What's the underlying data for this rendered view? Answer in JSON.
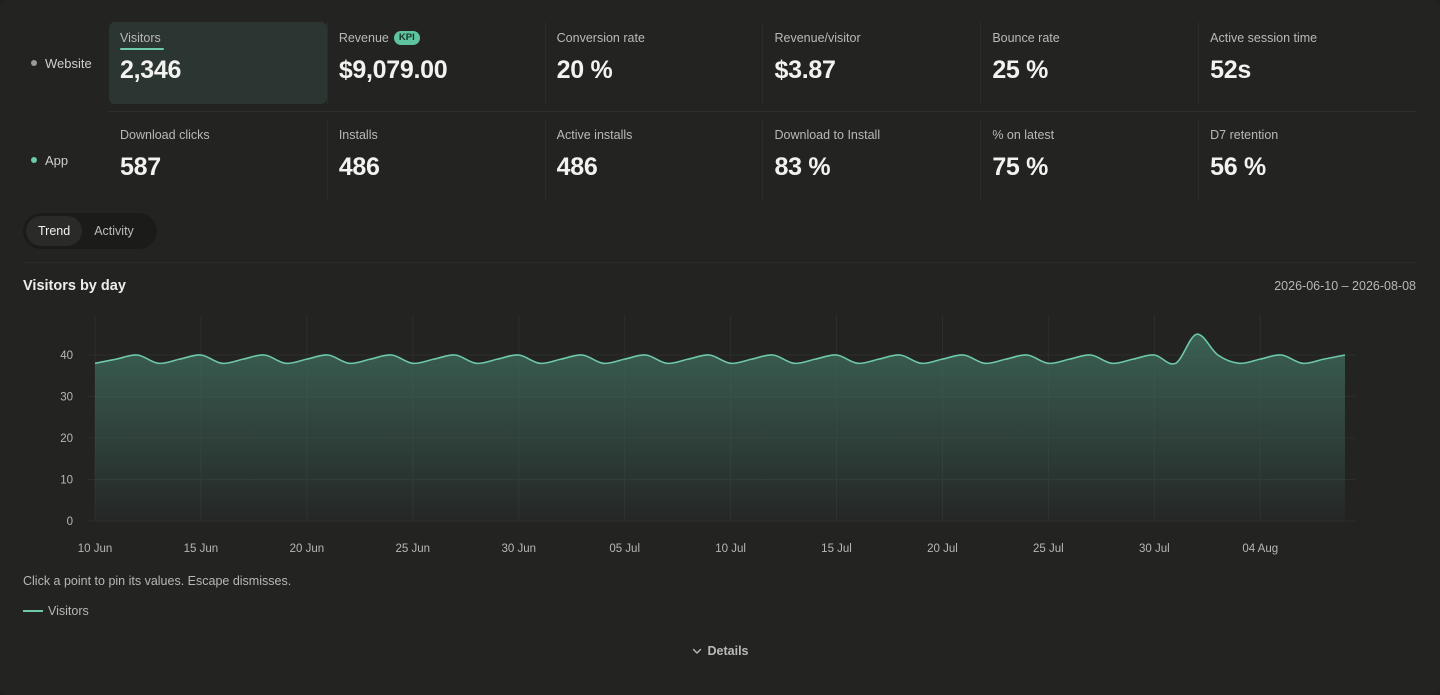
{
  "rows": [
    {
      "label": "Website",
      "dot_color": "#9b9b97",
      "cards": [
        {
          "label": "Visitors",
          "value": "2,346",
          "selected": true
        },
        {
          "label": "Revenue",
          "badge": "KPI",
          "value": "$9,079.00"
        },
        {
          "label": "Conversion rate",
          "value": "20 %"
        },
        {
          "label": "Revenue/visitor",
          "value": "$3.87"
        },
        {
          "label": "Bounce rate",
          "value": "25 %"
        },
        {
          "label": "Active session time",
          "value": "52s"
        }
      ]
    },
    {
      "label": "App",
      "dot_color": "#6ec9a8",
      "cards": [
        {
          "label": "Download clicks",
          "value": "587"
        },
        {
          "label": "Installs",
          "value": "486"
        },
        {
          "label": "Active installs",
          "value": "486"
        },
        {
          "label": "Download to Install",
          "value": "83 %"
        },
        {
          "label": "% on latest",
          "value": "75 %"
        },
        {
          "label": "D7 retention",
          "value": "56 %"
        }
      ]
    }
  ],
  "tabs": [
    {
      "label": "Trend",
      "active": true
    },
    {
      "label": "Activity",
      "active": false
    }
  ],
  "chart_title": "Visitors by day",
  "chart_range": "2026-06-10 – 2026-08-08",
  "hint": "Click a point to pin its values. Escape dismisses.",
  "legend_label": "Visitors",
  "details_label": "Details",
  "colors": {
    "accent": "#6ec9a8",
    "fill": "#3f6b5c",
    "grid": "#2e2e2d"
  },
  "chart_data": {
    "type": "area",
    "title": "Visitors by day",
    "xlabel": "",
    "ylabel": "",
    "ylim": [
      0,
      40
    ],
    "yticks": [
      0,
      10,
      20,
      30,
      40
    ],
    "xticks": [
      "10 Jun",
      "15 Jun",
      "20 Jun",
      "25 Jun",
      "30 Jun",
      "05 Jul",
      "10 Jul",
      "15 Jul",
      "20 Jul",
      "25 Jul",
      "30 Jul",
      "04 Aug"
    ],
    "grid": true,
    "x": [
      "2026-06-10",
      "2026-06-11",
      "2026-06-12",
      "2026-06-13",
      "2026-06-14",
      "2026-06-15",
      "2026-06-16",
      "2026-06-17",
      "2026-06-18",
      "2026-06-19",
      "2026-06-20",
      "2026-06-21",
      "2026-06-22",
      "2026-06-23",
      "2026-06-24",
      "2026-06-25",
      "2026-06-26",
      "2026-06-27",
      "2026-06-28",
      "2026-06-29",
      "2026-06-30",
      "2026-07-01",
      "2026-07-02",
      "2026-07-03",
      "2026-07-04",
      "2026-07-05",
      "2026-07-06",
      "2026-07-07",
      "2026-07-08",
      "2026-07-09",
      "2026-07-10",
      "2026-07-11",
      "2026-07-12",
      "2026-07-13",
      "2026-07-14",
      "2026-07-15",
      "2026-07-16",
      "2026-07-17",
      "2026-07-18",
      "2026-07-19",
      "2026-07-20",
      "2026-07-21",
      "2026-07-22",
      "2026-07-23",
      "2026-07-24",
      "2026-07-25",
      "2026-07-26",
      "2026-07-27",
      "2026-07-28",
      "2026-07-29",
      "2026-07-30",
      "2026-07-31",
      "2026-08-01",
      "2026-08-02",
      "2026-08-03",
      "2026-08-04",
      "2026-08-05",
      "2026-08-06",
      "2026-08-07",
      "2026-08-08"
    ],
    "series": [
      {
        "name": "Visitors",
        "values": [
          38,
          39,
          40,
          38,
          39,
          40,
          38,
          39,
          40,
          38,
          39,
          40,
          38,
          39,
          40,
          38,
          39,
          40,
          38,
          39,
          40,
          38,
          39,
          40,
          38,
          39,
          40,
          38,
          39,
          40,
          38,
          39,
          40,
          38,
          39,
          40,
          38,
          39,
          40,
          38,
          39,
          40,
          38,
          39,
          40,
          38,
          39,
          40,
          38,
          39,
          40,
          38,
          45,
          40,
          38,
          39,
          40,
          38,
          39,
          40
        ]
      }
    ]
  }
}
